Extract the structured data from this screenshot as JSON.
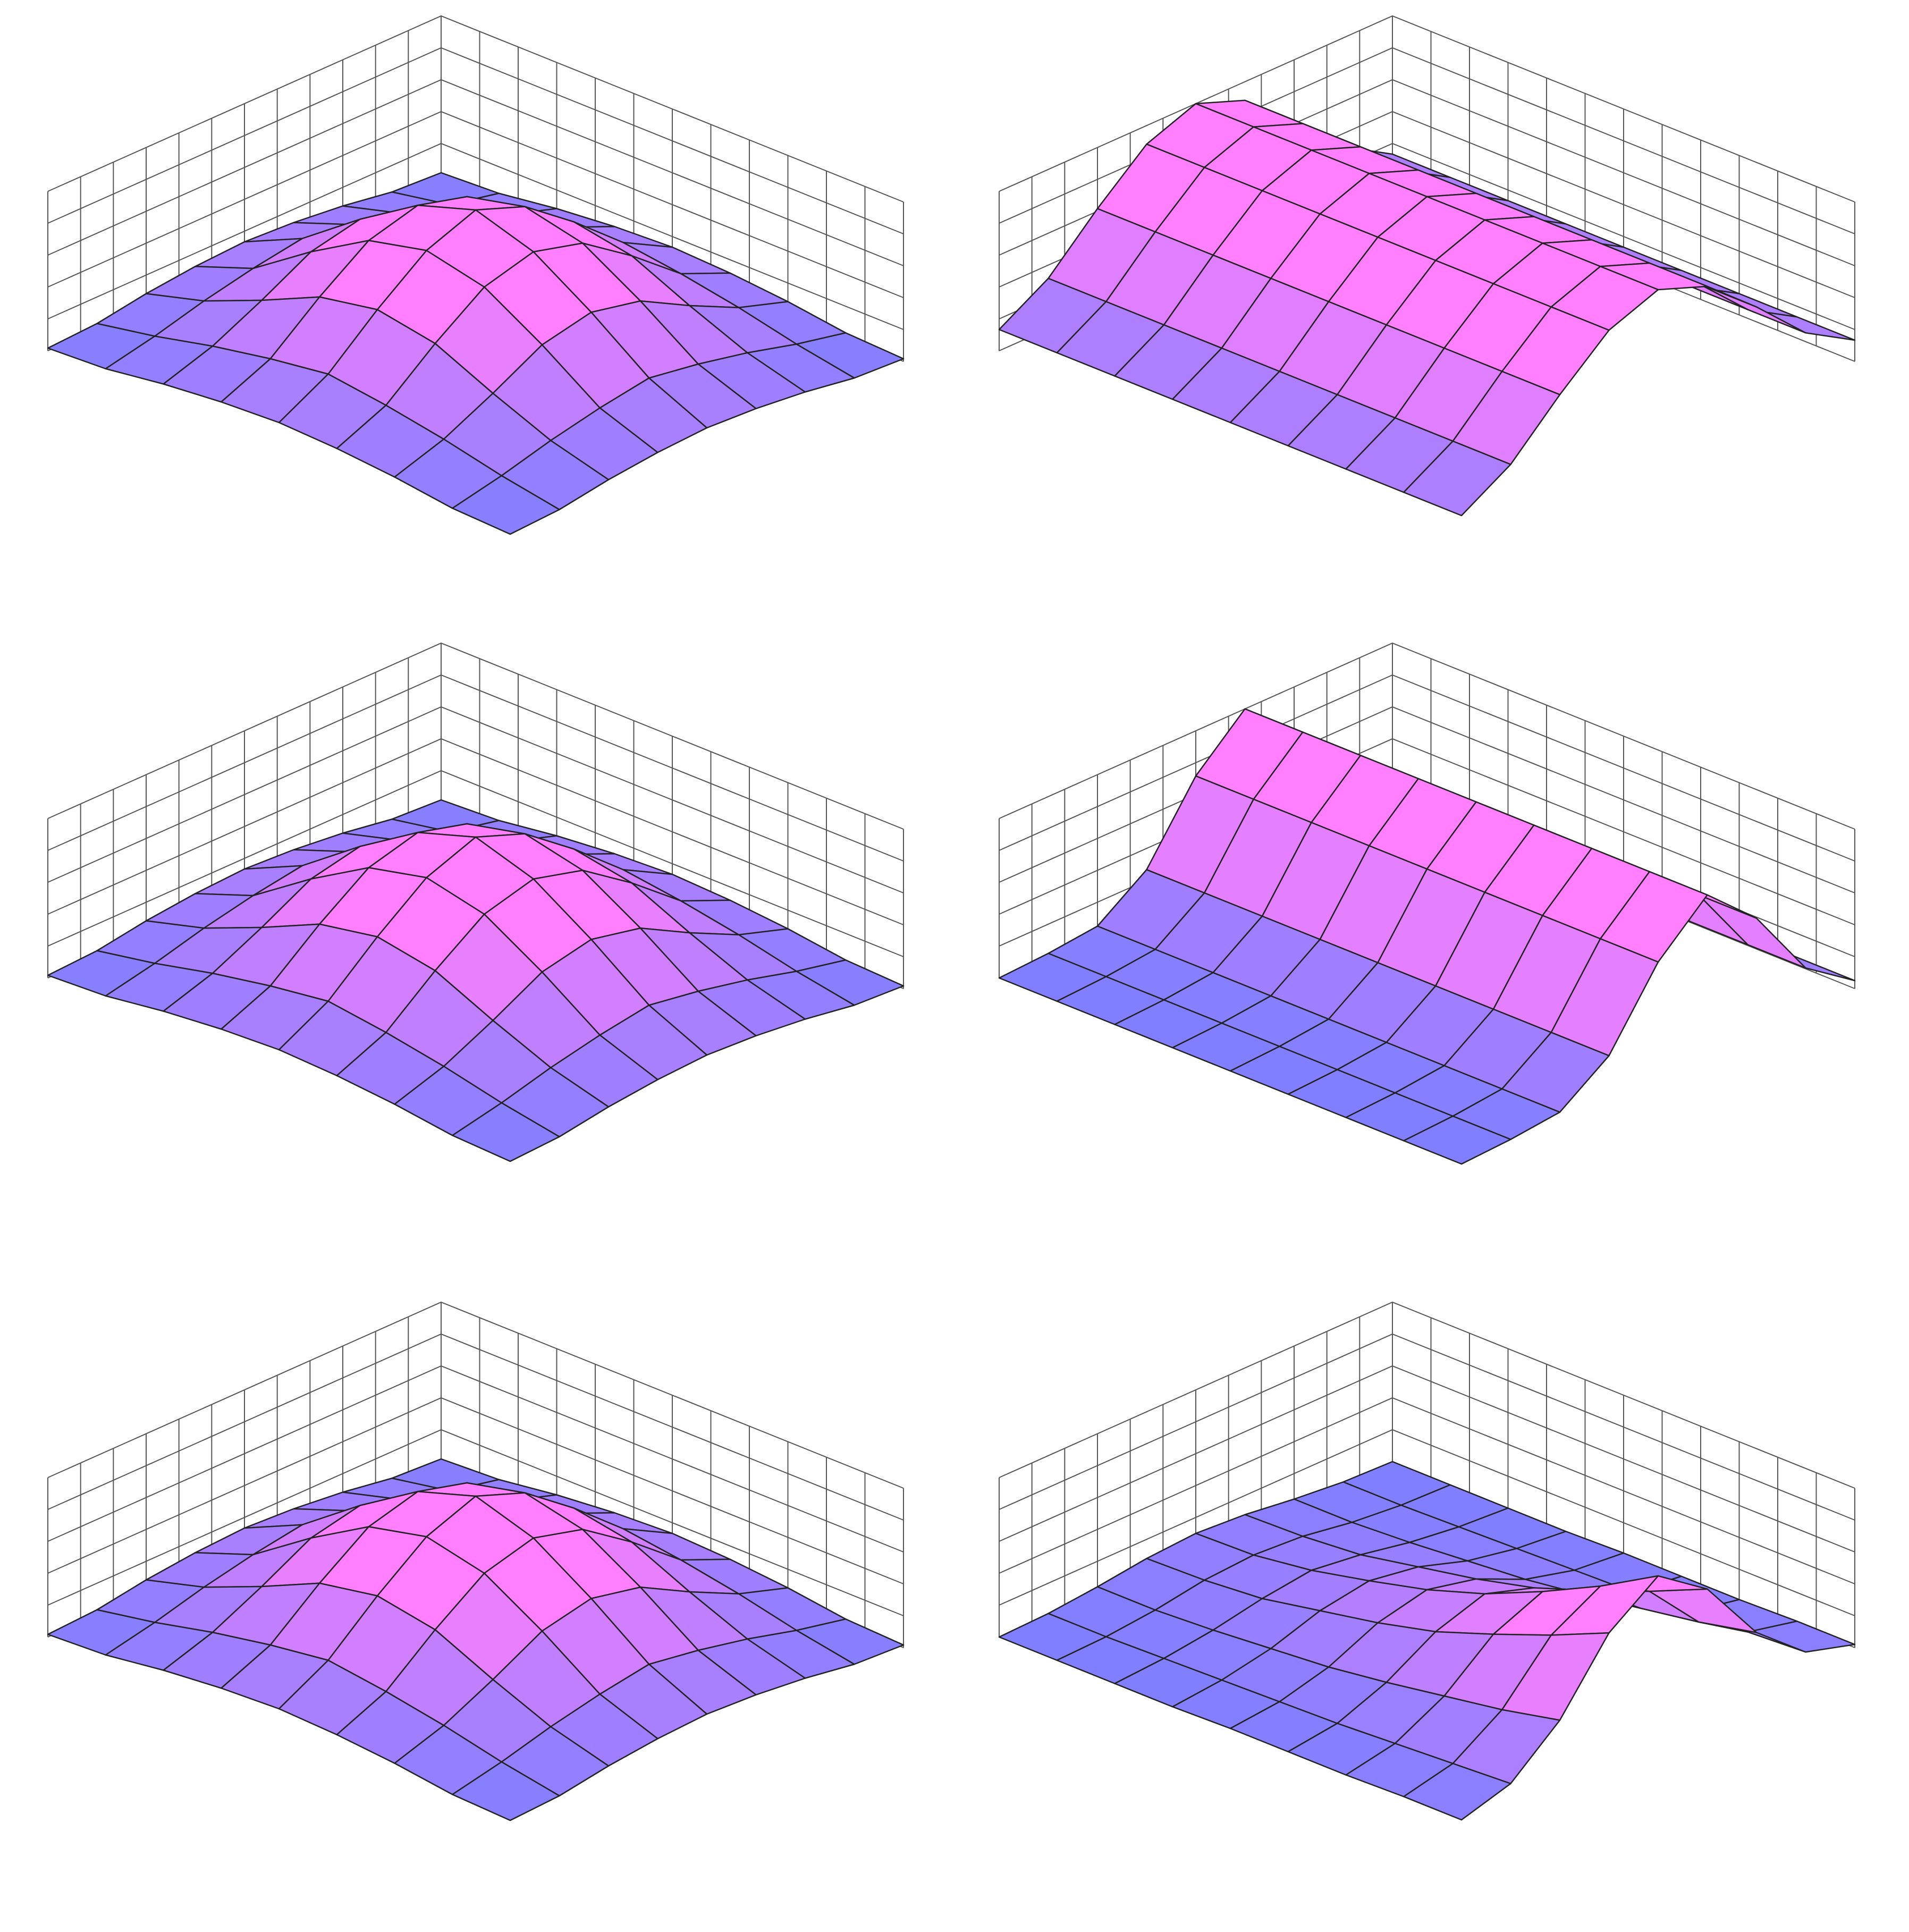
{
  "chart_data": [
    {
      "type": "surface",
      "zlim": [
        0,
        0.6
      ],
      "colormap": [
        "#7f7fff",
        "#ff7fff"
      ],
      "z": [
        [
          0.01,
          0.02,
          0.05,
          0.07,
          0.08,
          0.07,
          0.05,
          0.02,
          0.01
        ],
        [
          0.02,
          0.06,
          0.11,
          0.15,
          0.18,
          0.15,
          0.11,
          0.06,
          0.02
        ],
        [
          0.05,
          0.11,
          0.2,
          0.3,
          0.34,
          0.3,
          0.2,
          0.11,
          0.05
        ],
        [
          0.07,
          0.15,
          0.3,
          0.43,
          0.48,
          0.43,
          0.3,
          0.15,
          0.07
        ],
        [
          0.08,
          0.18,
          0.34,
          0.48,
          0.55,
          0.48,
          0.34,
          0.18,
          0.08
        ],
        [
          0.07,
          0.15,
          0.3,
          0.43,
          0.48,
          0.43,
          0.3,
          0.15,
          0.07
        ],
        [
          0.05,
          0.11,
          0.2,
          0.3,
          0.34,
          0.3,
          0.2,
          0.11,
          0.05
        ],
        [
          0.02,
          0.06,
          0.11,
          0.15,
          0.18,
          0.15,
          0.11,
          0.06,
          0.02
        ],
        [
          0.01,
          0.02,
          0.05,
          0.07,
          0.08,
          0.07,
          0.05,
          0.02,
          0.01
        ]
      ]
    },
    {
      "type": "surface",
      "zlim": [
        0,
        0.6
      ],
      "colormap": [
        "#7f7fff",
        "#ff7fff"
      ],
      "z": [
        [
          0.08,
          0.08,
          0.08,
          0.08,
          0.08,
          0.08,
          0.08,
          0.08,
          0.08
        ],
        [
          0.19,
          0.19,
          0.19,
          0.19,
          0.19,
          0.19,
          0.19,
          0.19,
          0.19
        ],
        [
          0.37,
          0.37,
          0.37,
          0.37,
          0.37,
          0.37,
          0.37,
          0.37,
          0.37
        ],
        [
          0.53,
          0.53,
          0.53,
          0.53,
          0.53,
          0.53,
          0.53,
          0.53,
          0.53
        ],
        [
          0.6,
          0.6,
          0.6,
          0.6,
          0.6,
          0.6,
          0.6,
          0.6,
          0.6
        ],
        [
          0.53,
          0.53,
          0.53,
          0.53,
          0.53,
          0.53,
          0.53,
          0.53,
          0.53
        ],
        [
          0.37,
          0.37,
          0.37,
          0.37,
          0.37,
          0.37,
          0.37,
          0.37,
          0.37
        ],
        [
          0.19,
          0.19,
          0.19,
          0.19,
          0.19,
          0.19,
          0.19,
          0.19,
          0.19
        ],
        [
          0.08,
          0.08,
          0.08,
          0.08,
          0.08,
          0.08,
          0.08,
          0.08,
          0.08
        ]
      ]
    },
    {
      "type": "surface",
      "zlim": [
        0,
        0.6
      ],
      "colormap": [
        "#7f7fff",
        "#ff7fff"
      ],
      "z": [
        [
          0.01,
          0.02,
          0.05,
          0.07,
          0.08,
          0.07,
          0.05,
          0.02,
          0.01
        ],
        [
          0.02,
          0.06,
          0.11,
          0.15,
          0.18,
          0.15,
          0.11,
          0.06,
          0.02
        ],
        [
          0.05,
          0.11,
          0.2,
          0.3,
          0.34,
          0.3,
          0.2,
          0.11,
          0.05
        ],
        [
          0.07,
          0.15,
          0.3,
          0.43,
          0.48,
          0.43,
          0.3,
          0.15,
          0.07
        ],
        [
          0.08,
          0.18,
          0.34,
          0.48,
          0.55,
          0.48,
          0.34,
          0.18,
          0.08
        ],
        [
          0.07,
          0.15,
          0.3,
          0.43,
          0.48,
          0.43,
          0.3,
          0.15,
          0.07
        ],
        [
          0.05,
          0.11,
          0.2,
          0.3,
          0.34,
          0.3,
          0.2,
          0.11,
          0.05
        ],
        [
          0.02,
          0.06,
          0.11,
          0.15,
          0.18,
          0.15,
          0.11,
          0.06,
          0.02
        ],
        [
          0.01,
          0.02,
          0.05,
          0.07,
          0.08,
          0.07,
          0.05,
          0.02,
          0.01
        ]
      ]
    },
    {
      "type": "surface",
      "zlim": [
        0,
        0.6
      ],
      "colormap": [
        "#7f7fff",
        "#ff7fff"
      ],
      "z": [
        [
          0.03,
          0.03,
          0.03,
          0.03,
          0.03,
          0.03,
          0.03,
          0.03,
          0.03
        ],
        [
          0.16,
          0.16,
          0.16,
          0.16,
          0.16,
          0.16,
          0.16,
          0.16,
          0.16
        ],
        [
          0.43,
          0.43,
          0.43,
          0.43,
          0.43,
          0.43,
          0.43,
          0.43,
          0.43
        ],
        [
          0.6,
          0.6,
          0.6,
          0.6,
          0.6,
          0.6,
          0.6,
          0.6,
          0.6
        ],
        [
          0.43,
          0.43,
          0.43,
          0.43,
          0.43,
          0.43,
          0.43,
          0.43,
          0.43
        ],
        [
          0.16,
          0.16,
          0.16,
          0.16,
          0.16,
          0.16,
          0.16,
          0.16,
          0.16
        ],
        [
          0.03,
          0.03,
          0.03,
          0.03,
          0.03,
          0.03,
          0.03,
          0.03,
          0.03
        ],
        [
          0.01,
          0.01,
          0.01,
          0.01,
          0.01,
          0.01,
          0.01,
          0.01,
          0.01
        ],
        [
          0,
          0,
          0,
          0,
          0,
          0,
          0,
          0,
          0
        ]
      ]
    },
    {
      "type": "surface",
      "zlim": [
        0,
        0.6
      ],
      "colormap": [
        "#7f7fff",
        "#ff7fff"
      ],
      "z": [
        [
          0.01,
          0.02,
          0.05,
          0.07,
          0.08,
          0.07,
          0.05,
          0.02,
          0.01
        ],
        [
          0.02,
          0.06,
          0.11,
          0.15,
          0.18,
          0.15,
          0.11,
          0.06,
          0.02
        ],
        [
          0.05,
          0.11,
          0.2,
          0.3,
          0.34,
          0.3,
          0.2,
          0.11,
          0.05
        ],
        [
          0.07,
          0.15,
          0.3,
          0.43,
          0.48,
          0.43,
          0.3,
          0.15,
          0.07
        ],
        [
          0.08,
          0.18,
          0.34,
          0.48,
          0.55,
          0.48,
          0.34,
          0.18,
          0.08
        ],
        [
          0.07,
          0.15,
          0.3,
          0.43,
          0.48,
          0.43,
          0.3,
          0.15,
          0.07
        ],
        [
          0.05,
          0.11,
          0.2,
          0.3,
          0.34,
          0.3,
          0.2,
          0.11,
          0.05
        ],
        [
          0.02,
          0.06,
          0.11,
          0.15,
          0.18,
          0.15,
          0.11,
          0.06,
          0.02
        ],
        [
          0.01,
          0.02,
          0.05,
          0.07,
          0.08,
          0.07,
          0.05,
          0.02,
          0.01
        ]
      ]
    },
    {
      "type": "surface",
      "zlim": [
        0,
        1
      ],
      "colormap": [
        "#7f7fff",
        "#ff7fff"
      ],
      "z": [
        [
          0,
          0,
          0,
          0,
          0.01,
          0.01,
          0.01,
          0.02,
          0.02
        ],
        [
          0.01,
          0.01,
          0.02,
          0.03,
          0.04,
          0.05,
          0.07,
          0.09,
          0.11
        ],
        [
          0.04,
          0.04,
          0.06,
          0.09,
          0.12,
          0.17,
          0.23,
          0.29,
          0.37
        ],
        [
          0.08,
          0.09,
          0.12,
          0.19,
          0.26,
          0.35,
          0.48,
          0.62,
          0.78
        ],
        [
          0.1,
          0.11,
          0.16,
          0.24,
          0.33,
          0.45,
          0.61,
          0.79,
          1
        ],
        [
          0.08,
          0.09,
          0.12,
          0.19,
          0.26,
          0.35,
          0.48,
          0.62,
          0.78
        ],
        [
          0.04,
          0.04,
          0.06,
          0.09,
          0.12,
          0.17,
          0.23,
          0.29,
          0.37
        ],
        [
          0.01,
          0.01,
          0.02,
          0.03,
          0.04,
          0.05,
          0.07,
          0.09,
          0.11
        ],
        [
          0,
          0,
          0,
          0,
          0.01,
          0.01,
          0.01,
          0.02,
          0.02
        ]
      ]
    }
  ]
}
